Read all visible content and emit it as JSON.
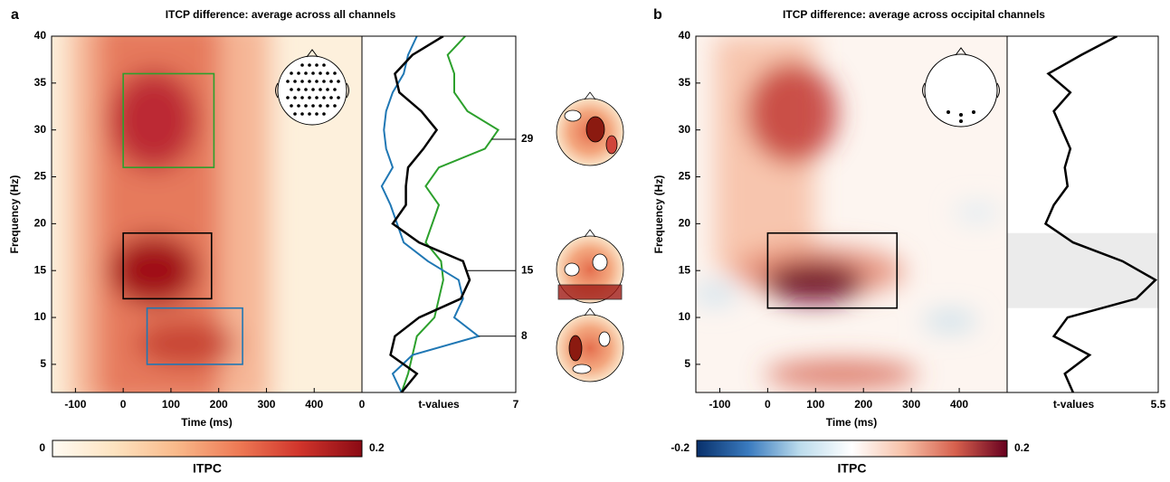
{
  "chart_data": [
    {
      "type": "heatmap",
      "panel": "a",
      "title": "ITCP difference: average across all channels",
      "xlabel": "Time (ms)",
      "ylabel": "Frequency (Hz)",
      "xlim": [
        -150,
        500
      ],
      "xticks": [
        -100,
        0,
        100,
        200,
        300,
        400
      ],
      "ylim": [
        2,
        40
      ],
      "yticks": [
        5,
        10,
        15,
        20,
        25,
        30,
        35,
        40
      ],
      "regions": [
        {
          "color": "#2ca02c",
          "x": [
            0,
            190
          ],
          "y": [
            26,
            36
          ]
        },
        {
          "color": "#000000",
          "x": [
            0,
            185
          ],
          "y": [
            12,
            19
          ]
        },
        {
          "color": "#1f77b4",
          "x": [
            50,
            250
          ],
          "y": [
            5,
            11
          ]
        }
      ],
      "colorbar": {
        "label": "ITPC",
        "lim": [
          0,
          0.2
        ],
        "ticks": [
          0,
          0.2
        ],
        "colors": [
          "#fffbf3",
          "#fde3c0",
          "#f9b98a",
          "#ee7a55",
          "#d0342b",
          "#8b0a14"
        ]
      },
      "profile": {
        "type": "line",
        "xlabel": "t-values",
        "xlim": [
          0,
          7
        ],
        "xticks": [
          0,
          7
        ],
        "y": [
          2,
          4,
          6,
          8,
          10,
          12,
          14,
          16,
          18,
          20,
          22,
          24,
          26,
          28,
          30,
          32,
          34,
          36,
          38,
          40
        ],
        "series": [
          {
            "color": "#2ca02c",
            "values": [
              1.8,
              2.1,
              2.3,
              2.5,
              3.3,
              3.5,
              3.7,
              3.6,
              2.9,
              3.2,
              3.5,
              2.9,
              3.5,
              5.6,
              6.2,
              4.8,
              4.2,
              4.2,
              3.9,
              4.7
            ]
          },
          {
            "color": "#1f77b4",
            "values": [
              1.8,
              1.4,
              2.3,
              5.3,
              4.2,
              4.6,
              4.4,
              3.0,
              1.9,
              1.6,
              1.3,
              0.9,
              1.4,
              1.1,
              1.0,
              1.1,
              1.4,
              1.9,
              2.1,
              2.5
            ]
          },
          {
            "color": "#000000",
            "values": [
              1.8,
              2.5,
              1.3,
              1.5,
              2.6,
              4.5,
              4.9,
              4.6,
              2.6,
              1.4,
              2.0,
              2.0,
              2.1,
              2.8,
              3.4,
              2.7,
              1.7,
              1.5,
              2.3,
              3.7
            ]
          }
        ],
        "annotations": [
          29,
          15,
          8
        ]
      }
    },
    {
      "type": "heatmap",
      "panel": "b",
      "title": "ITCP difference: average across occipital channels",
      "xlabel": "Time (ms)",
      "ylabel": "Frequency (Hz)",
      "xlim": [
        -150,
        500
      ],
      "xticks": [
        -100,
        0,
        100,
        200,
        300,
        400
      ],
      "ylim": [
        2,
        40
      ],
      "yticks": [
        5,
        10,
        15,
        20,
        25,
        30,
        35,
        40
      ],
      "regions": [
        {
          "color": "#000000",
          "x": [
            0,
            270
          ],
          "y": [
            11,
            19
          ]
        }
      ],
      "colorbar": {
        "label": "ITPC",
        "lim": [
          -0.2,
          0.2
        ],
        "ticks": [
          -0.2,
          0.2
        ],
        "colors": [
          "#08306b",
          "#3a7bbf",
          "#bcdcec",
          "#ffffff",
          "#f7c1a8",
          "#d6604d",
          "#67001f"
        ]
      },
      "profile": {
        "type": "line",
        "xlabel": "t-values",
        "xlim": [
          0,
          5.5
        ],
        "xticks": [
          5.5
        ],
        "highlight": [
          11,
          19
        ],
        "y": [
          2,
          4,
          6,
          8,
          10,
          12,
          14,
          16,
          18,
          20,
          22,
          24,
          26,
          28,
          30,
          32,
          34,
          36,
          38,
          40
        ],
        "series": [
          {
            "color": "#000000",
            "values": [
              2.4,
              2.1,
              3.0,
              1.7,
              2.2,
              4.7,
              5.4,
              4.2,
              2.4,
              1.4,
              1.7,
              2.2,
              2.1,
              2.3,
              2.0,
              1.7,
              2.3,
              1.5,
              2.7,
              4.0
            ]
          }
        ]
      }
    }
  ]
}
